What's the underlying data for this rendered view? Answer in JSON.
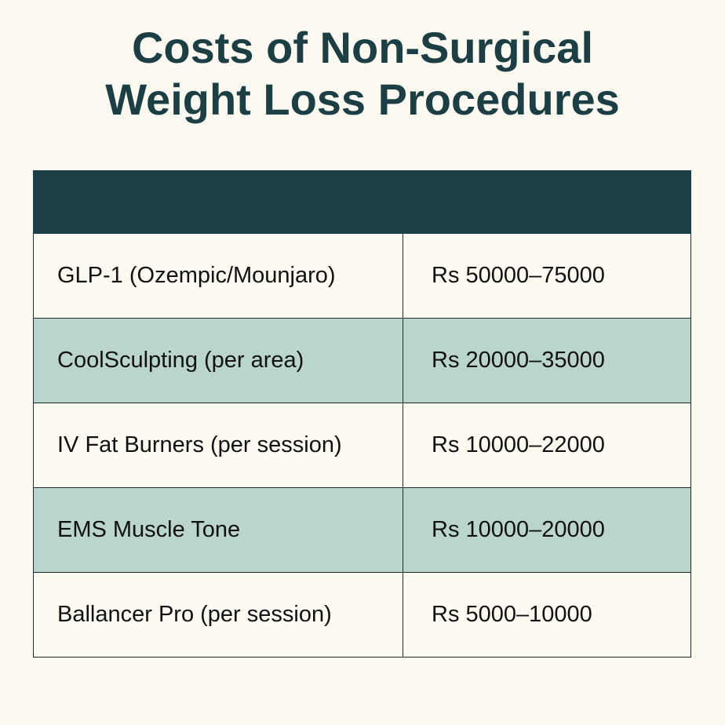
{
  "title_line1": "Costs of Non-Surgical",
  "title_line2": "Weight Loss Procedures",
  "table": {
    "headers": [
      "",
      ""
    ],
    "rows": [
      {
        "procedure": "GLP-1 (Ozempic/Mounjaro)",
        "cost": "Rs 50000–75000"
      },
      {
        "procedure": "CoolSculpting (per area)",
        "cost": "Rs 20000–35000"
      },
      {
        "procedure": "IV Fat Burners (per session)",
        "cost": "Rs 10000–22000"
      },
      {
        "procedure": "EMS Muscle Tone",
        "cost": "Rs 10000–20000"
      },
      {
        "procedure": "Ballancer Pro (per session)",
        "cost": "Rs 5000–10000"
      }
    ]
  },
  "colors": {
    "title": "#1b3f45",
    "header": "#1a3f46",
    "alt_row": "#bad5cd",
    "background": "#fcf9f0"
  }
}
